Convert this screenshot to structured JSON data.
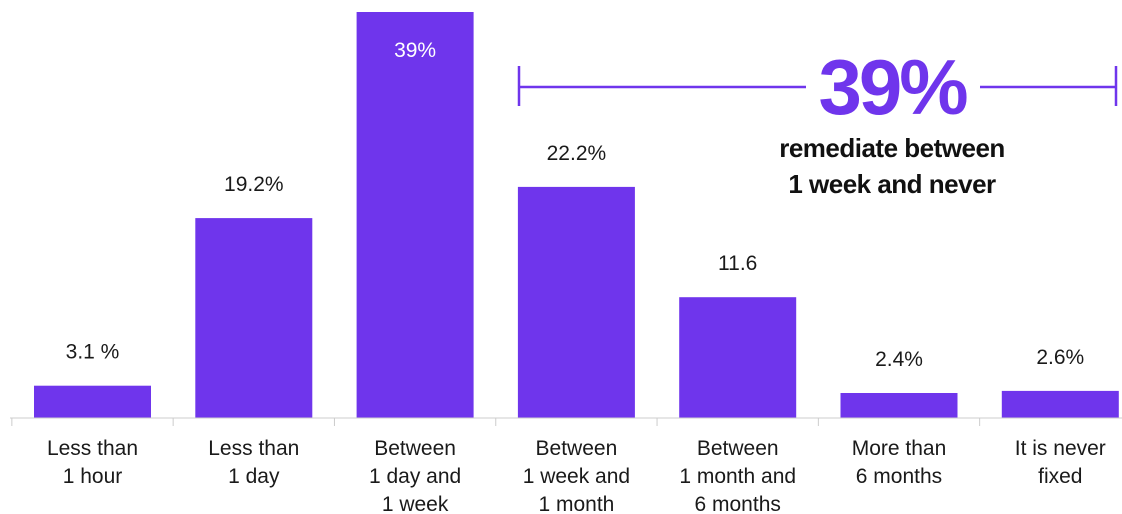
{
  "colors": {
    "bar": "#6f35ec",
    "axis": "#cccccc",
    "accent": "#6f35ec"
  },
  "callout": {
    "value": "39%",
    "line1": "remediate between",
    "line2": "1 week and never"
  },
  "chart_data": {
    "type": "bar",
    "categories": [
      [
        "Less than",
        "1 hour"
      ],
      [
        "Less than",
        "1 day"
      ],
      [
        "Between",
        "1 day and",
        "1 week"
      ],
      [
        "Between",
        "1 week and",
        "1 month"
      ],
      [
        "Between",
        "1 month and",
        "6 months"
      ],
      [
        "More than",
        "6 months"
      ],
      [
        "It is never",
        "fixed"
      ]
    ],
    "values": [
      3.1,
      19.2,
      39,
      22.2,
      11.6,
      2.4,
      2.6
    ],
    "data_labels": [
      "3.1 %",
      "19.2%",
      "39%",
      "22.2%",
      "11.6",
      "2.4%",
      "2.6%"
    ],
    "ylim": [
      0,
      39
    ],
    "grid": false,
    "legend": "none"
  }
}
